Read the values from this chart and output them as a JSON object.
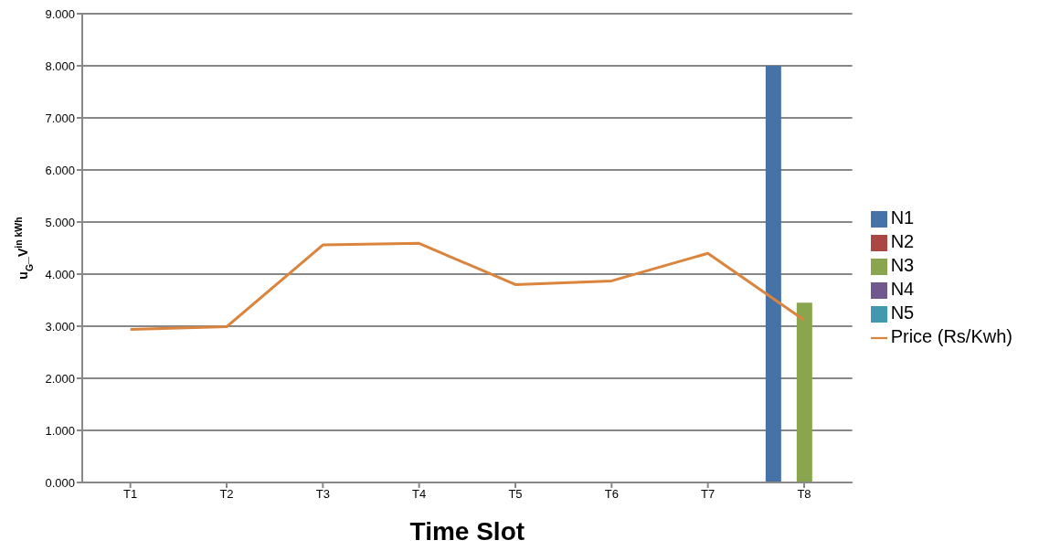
{
  "chart_data": {
    "type": "bar",
    "xlabel": "Time Slot",
    "ylabel": "u$_{G}$_V$^{in kWh}$",
    "categories": [
      "T1",
      "T2",
      "T3",
      "T4",
      "T5",
      "T6",
      "T7",
      "T8"
    ],
    "series": [
      {
        "name": "N1",
        "color": "#4572a7",
        "values": [
          0,
          0,
          0,
          0,
          0,
          0,
          0,
          8.0
        ]
      },
      {
        "name": "N2",
        "color": "#aa4643",
        "values": [
          0,
          0,
          0,
          0,
          0,
          0,
          0,
          0
        ]
      },
      {
        "name": "N3",
        "color": "#89a54e",
        "values": [
          0,
          0,
          0,
          0,
          0,
          0,
          0,
          3.45
        ]
      },
      {
        "name": "N4",
        "color": "#71588f",
        "values": [
          0,
          0,
          0,
          0,
          0,
          0,
          0,
          0
        ]
      },
      {
        "name": "N5",
        "color": "#4198af",
        "values": [
          0,
          0,
          0,
          0,
          0,
          0,
          0,
          0
        ]
      },
      {
        "name": "Price (Rs/Kwh)",
        "type": "line",
        "color": "#db843d",
        "values": [
          2.94,
          2.99,
          4.56,
          4.59,
          3.8,
          3.87,
          4.4,
          3.12
        ]
      }
    ],
    "ylim": [
      0,
      9
    ],
    "yticks": [
      {
        "value": 0,
        "label": "0.000"
      },
      {
        "value": 1,
        "label": "1.000"
      },
      {
        "value": 2,
        "label": "2.000"
      },
      {
        "value": 3,
        "label": "3.000"
      },
      {
        "value": 4,
        "label": "4.000"
      },
      {
        "value": 5,
        "label": "5.000"
      },
      {
        "value": 6,
        "label": "6.000"
      },
      {
        "value": 7,
        "label": "7.000"
      },
      {
        "value": 8,
        "label": "8.000"
      },
      {
        "value": 9,
        "label": "9.000"
      }
    ],
    "grid": "y",
    "legend": "right",
    "marker": "none",
    "line_style": "solid"
  }
}
